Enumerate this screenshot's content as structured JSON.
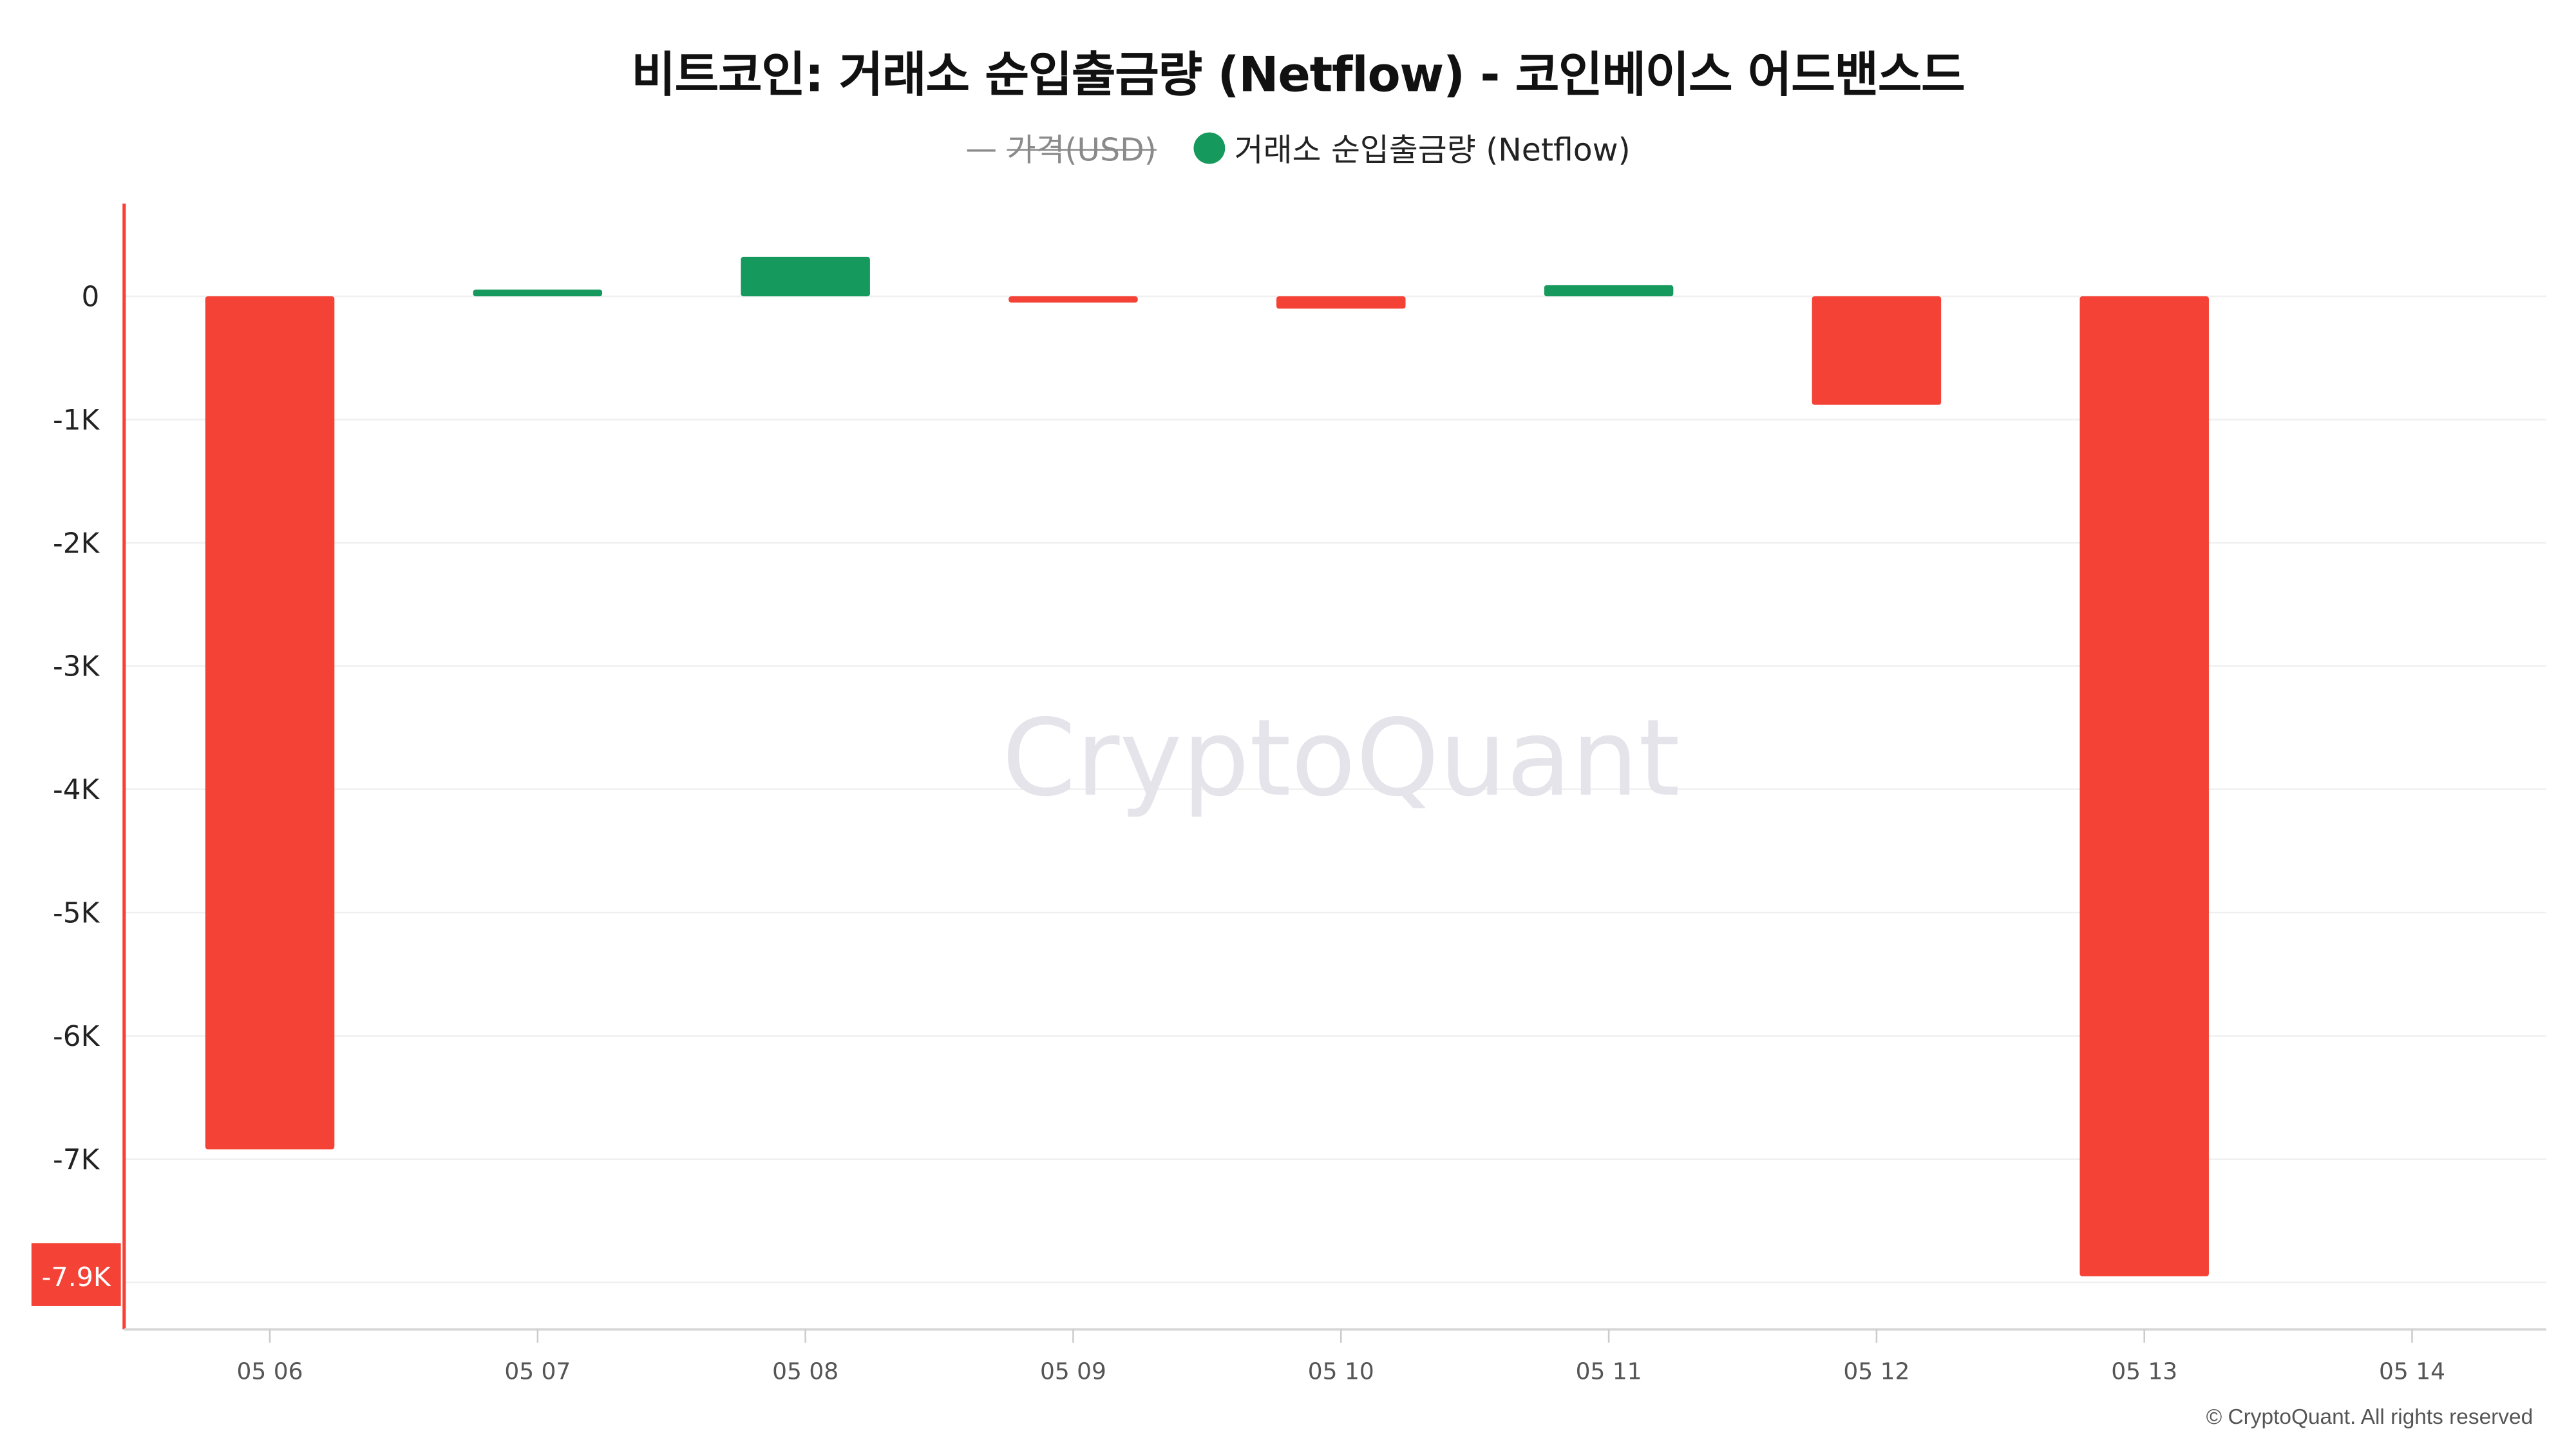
{
  "title": "비트코인: 거래소 순입출금량 (Netflow) - 코인베이스 어드밴스드",
  "legend": {
    "price_dash": "—",
    "price_label": "가격(USD)",
    "netflow_label": "거래소 순입출금량 (Netflow)"
  },
  "watermark": "CryptoQuant",
  "copyright": "© CryptoQuant. All rights reserved",
  "colors": {
    "positive": "#16995c",
    "negative": "#f44336",
    "axis_line": "#f44336",
    "grid": "#f0f0f0",
    "watermark": "#e4e4ea"
  },
  "chart_data": {
    "type": "bar",
    "categories": [
      "05 06",
      "05 07",
      "05 08",
      "05 09",
      "05 10",
      "05 11",
      "05 12",
      "05 13",
      "05 14"
    ],
    "series": [
      {
        "name": "거래소 순입출금량 (Netflow)",
        "values": [
          -6920,
          55,
          320,
          -50,
          -100,
          90,
          -880,
          -7950,
          null
        ]
      }
    ],
    "y_ticks": [
      0,
      -1000,
      -2000,
      -3000,
      -4000,
      -5000,
      -6000,
      -7000
    ],
    "y_tick_labels": [
      "0",
      "-1K",
      "-2K",
      "-3K",
      "-4K",
      "-5K",
      "-6K",
      "-7K"
    ],
    "ylim": [
      -8500,
      750
    ],
    "last_value_label": "-7.9K",
    "grid": true
  }
}
